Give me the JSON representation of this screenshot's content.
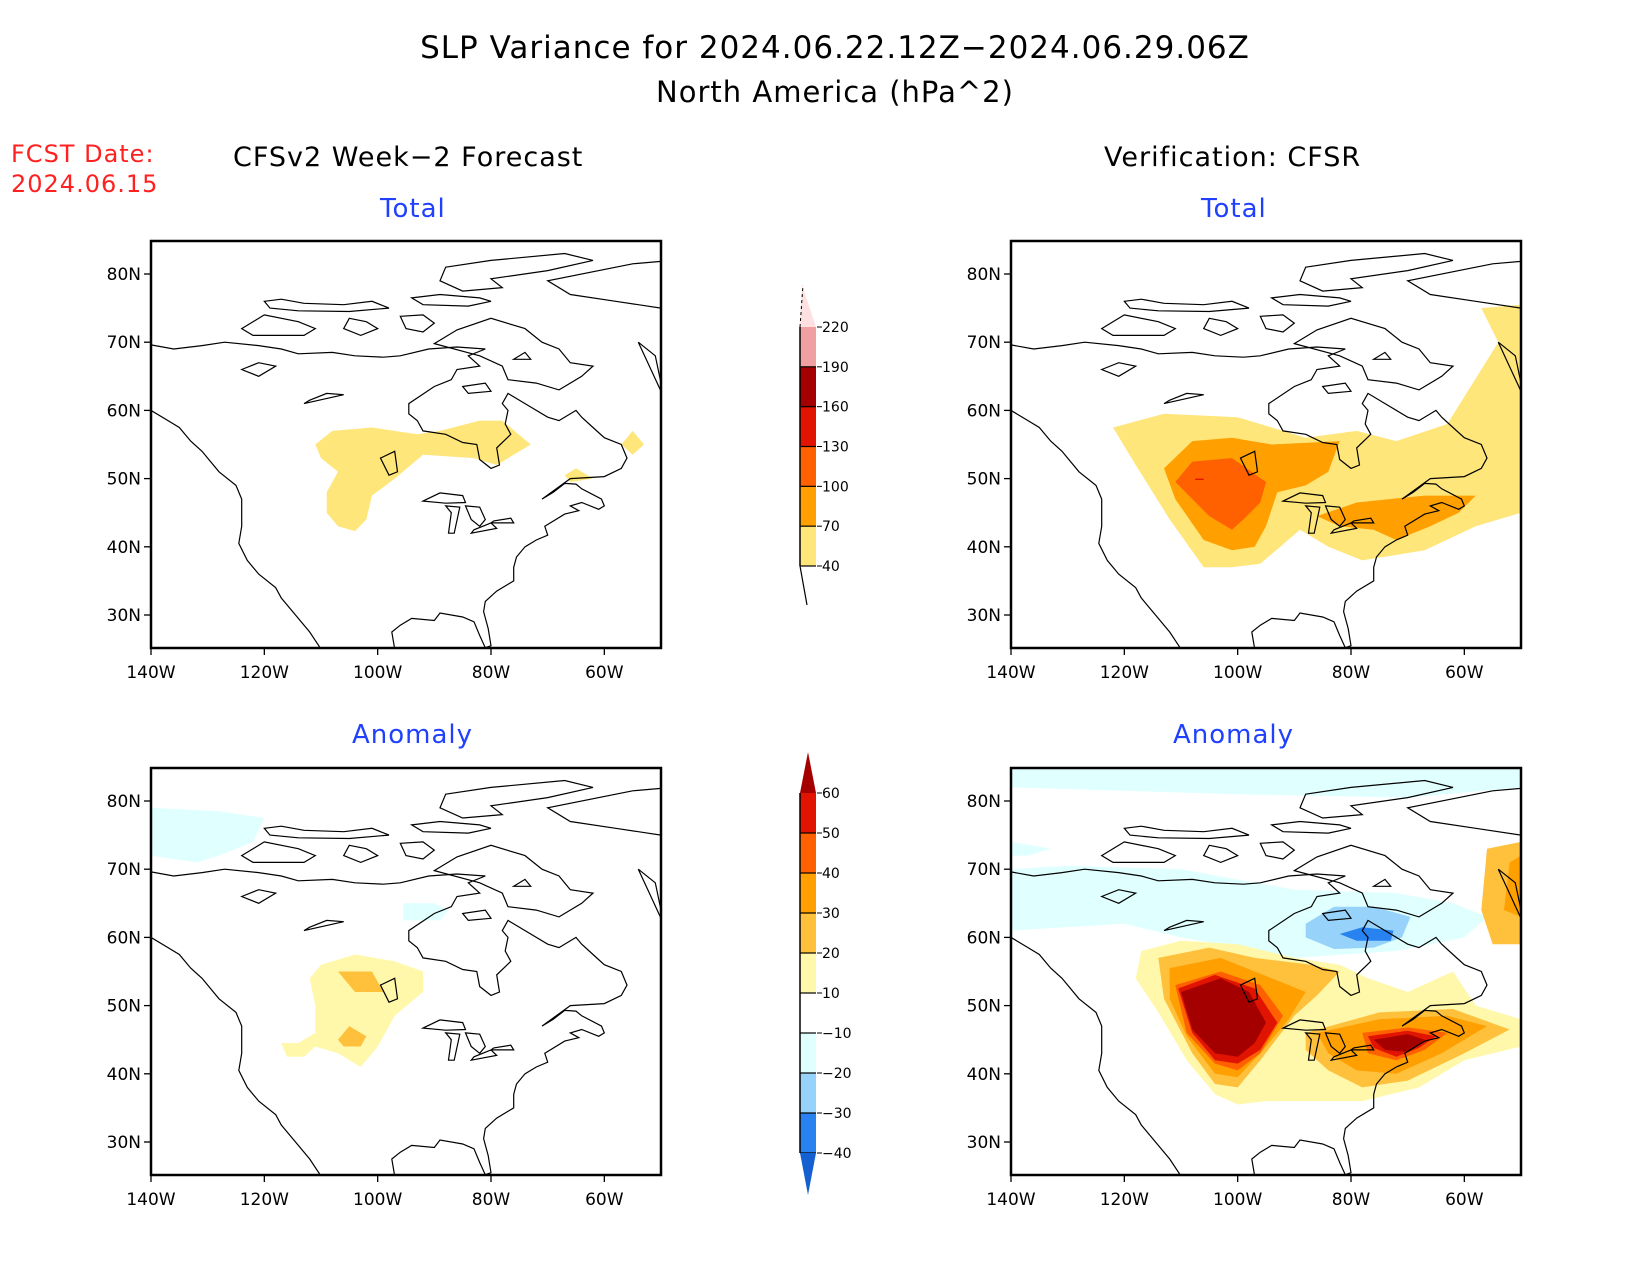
{
  "header": {
    "title": "SLP Variance for 2024.06.22.12Z−2024.06.29.06Z",
    "subtitle": "North America (hPa^2)",
    "fcst_label": "FCST Date:",
    "fcst_date": "2024.06.15"
  },
  "columns": {
    "left": "CFSv2 Week−2 Forecast",
    "right": "Verification: CFSR"
  },
  "colors": {
    "title_text": "#000000",
    "fcst_text": "#ff2020",
    "panel_title": "#2040ff"
  },
  "chart_data": [
    {
      "type": "heatmap",
      "panel": "forecast-total",
      "title": "Total",
      "column": "CFSv2 Week−2 Forecast",
      "xlabel": "",
      "ylabel": "",
      "xlim": [
        -140,
        -50
      ],
      "ylim": [
        25,
        85
      ],
      "x_ticks": [
        "140W",
        "120W",
        "100W",
        "80W",
        "60W"
      ],
      "y_ticks": [
        "30N",
        "40N",
        "50N",
        "60N",
        "70N",
        "80N"
      ],
      "colorbar": "total",
      "regions": [
        {
          "level": "40-70",
          "approx_area": "Canadian Prairies to Hudson Bay south shore",
          "lon": [
            -111,
            -73
          ],
          "lat": [
            42,
            57
          ]
        },
        {
          "level": "40-70",
          "approx_area": "Gulf of St. Lawrence",
          "lon": [
            -67,
            -62
          ],
          "lat": [
            49,
            51
          ]
        },
        {
          "level": "40-70",
          "approx_area": "Newfoundland",
          "lon": [
            -57,
            -53
          ],
          "lat": [
            53,
            57
          ]
        }
      ]
    },
    {
      "type": "heatmap",
      "panel": "verification-total",
      "title": "Total",
      "column": "Verification: CFSR",
      "xlim": [
        -140,
        -50
      ],
      "ylim": [
        25,
        85
      ],
      "x_ticks": [
        "140W",
        "120W",
        "100W",
        "80W",
        "60W"
      ],
      "y_ticks": [
        "30N",
        "40N",
        "50N",
        "60N",
        "70N",
        "80N"
      ],
      "colorbar": "total",
      "regions": [
        {
          "level": "40-70",
          "approx_area": "Canada / northern US / NW Atlantic, Greenland",
          "lon": [
            -122,
            -50
          ],
          "lat": [
            37,
            76
          ]
        },
        {
          "level": "70-100",
          "approx_area": "Prairies and southern Hudson Bay",
          "lon": [
            -113,
            -82
          ],
          "lat": [
            40,
            56
          ]
        },
        {
          "level": "70-100",
          "approx_area": "Great Lakes to Maritimes",
          "lon": [
            -84,
            -57
          ],
          "lat": [
            42,
            48
          ]
        },
        {
          "level": "100-130",
          "approx_area": "Saskatchewan / Montana",
          "lon": [
            -111,
            -95
          ],
          "lat": [
            42,
            53
          ]
        }
      ]
    },
    {
      "type": "heatmap",
      "panel": "forecast-anomaly",
      "title": "Anomaly",
      "column": "CFSv2 Week−2 Forecast",
      "xlim": [
        -140,
        -50
      ],
      "ylim": [
        25,
        85
      ],
      "x_ticks": [
        "140W",
        "120W",
        "100W",
        "80W",
        "60W"
      ],
      "y_ticks": [
        "30N",
        "40N",
        "50N",
        "60N",
        "70N",
        "80N"
      ],
      "colorbar": "anomaly",
      "regions": [
        {
          "level": "-20--10",
          "approx_area": "Beaufort Sea",
          "lon": [
            -140,
            -120
          ],
          "lat": [
            70,
            79
          ]
        },
        {
          "level": "-20--10",
          "approx_area": "NW Hudson Bay",
          "lon": [
            -96,
            -88
          ],
          "lat": [
            62,
            65
          ]
        },
        {
          "level": "10-20",
          "approx_area": "Prairies",
          "lon": [
            -117,
            -93
          ],
          "lat": [
            41,
            58
          ]
        },
        {
          "level": "20-30",
          "approx_area": "Saskatchewan",
          "lon": [
            -107,
            -100
          ],
          "lat": [
            52,
            55
          ]
        },
        {
          "level": "20-30",
          "approx_area": "Montana / Wyoming",
          "lon": [
            -106,
            -102
          ],
          "lat": [
            44,
            47
          ]
        }
      ]
    },
    {
      "type": "heatmap",
      "panel": "verification-anomaly",
      "title": "Anomaly",
      "column": "Verification: CFSR",
      "xlim": [
        -140,
        -50
      ],
      "ylim": [
        25,
        85
      ],
      "x_ticks": [
        "140W",
        "120W",
        "100W",
        "80W",
        "60W"
      ],
      "y_ticks": [
        "30N",
        "40N",
        "50N",
        "60N",
        "70N",
        "80N"
      ],
      "colorbar": "anomaly",
      "regions": [
        {
          "level": "-20--10",
          "approx_area": "Arctic / northern Canada band",
          "lon": [
            -140,
            -55
          ],
          "lat": [
            58,
            85
          ]
        },
        {
          "level": "-30--20",
          "approx_area": "Hudson Bay / northern Quebec",
          "lon": [
            -89,
            -70
          ],
          "lat": [
            58,
            64
          ]
        },
        {
          "level": "-40--30",
          "approx_area": "Ungava",
          "lon": [
            -82,
            -72
          ],
          "lat": [
            59,
            61
          ]
        },
        {
          "level": "10-60+",
          "approx_area": "Prairies to central US",
          "lon": [
            -115,
            -85
          ],
          "lat": [
            36,
            58
          ]
        },
        {
          "level": ">60",
          "approx_area": "Saskatchewan / Dakotas core",
          "lon": [
            -112,
            -95
          ],
          "lat": [
            41,
            54
          ]
        },
        {
          "level": "10-60+",
          "approx_area": "Great Lakes to Maritimes",
          "lon": [
            -88,
            -50
          ],
          "lat": [
            36,
            50
          ]
        },
        {
          "level": ">60",
          "approx_area": "New England / St. Lawrence core",
          "lon": [
            -76,
            -67
          ],
          "lat": [
            43,
            46
          ]
        },
        {
          "level": "10-40",
          "approx_area": "Labrador Sea / Greenland",
          "lon": [
            -57,
            -50
          ],
          "lat": [
            59,
            74
          ]
        }
      ]
    }
  ],
  "colorbars": {
    "total": {
      "labels": [
        "40",
        "70",
        "100",
        "130",
        "160",
        "190",
        "220"
      ],
      "levels": [
        40,
        70,
        100,
        130,
        160,
        190,
        220
      ],
      "colors": [
        "#ffe67a",
        "#ffa000",
        "#ff6000",
        "#e01400",
        "#a50000",
        "#f0a0a0",
        "#ffe0e0"
      ],
      "extend_low": "#ffffff"
    },
    "anomaly": {
      "labels": [
        "-40",
        "-30",
        "-20",
        "-10",
        "10",
        "20",
        "30",
        "40",
        "50",
        "60"
      ],
      "levels": [
        -40,
        -30,
        -20,
        -10,
        10,
        20,
        30,
        40,
        50,
        60
      ],
      "colors": [
        "#1560d0",
        "#2882f0",
        "#96d2fa",
        "#e0ffff",
        "#ffffff",
        "#fff8aa",
        "#ffc03c",
        "#ffa000",
        "#ff6000",
        "#e01400",
        "#a50000"
      ]
    }
  }
}
